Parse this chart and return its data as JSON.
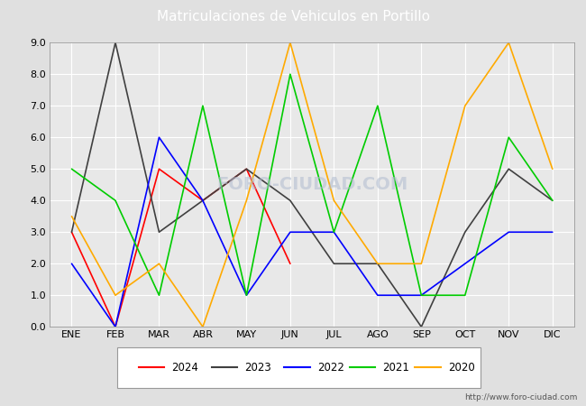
{
  "title": "Matriculaciones de Vehiculos en Portillo",
  "months": [
    "ENE",
    "FEB",
    "MAR",
    "ABR",
    "MAY",
    "JUN",
    "JUL",
    "AGO",
    "SEP",
    "OCT",
    "NOV",
    "DIC"
  ],
  "series": {
    "2024": [
      3.0,
      0.0,
      5.0,
      4.0,
      5.0,
      2.0,
      null,
      null,
      null,
      null,
      null,
      null
    ],
    "2023": [
      3.0,
      9.0,
      3.0,
      4.0,
      5.0,
      4.0,
      2.0,
      2.0,
      0.0,
      3.0,
      5.0,
      4.0
    ],
    "2022": [
      2.0,
      0.0,
      6.0,
      4.0,
      1.0,
      3.0,
      3.0,
      1.0,
      1.0,
      2.0,
      3.0,
      3.0
    ],
    "2021": [
      5.0,
      4.0,
      1.0,
      7.0,
      1.0,
      8.0,
      3.0,
      7.0,
      1.0,
      1.0,
      6.0,
      4.0
    ],
    "2020": [
      3.5,
      1.0,
      2.0,
      0.0,
      4.0,
      9.0,
      4.0,
      2.0,
      2.0,
      7.0,
      9.0,
      5.0
    ]
  },
  "colors": {
    "2024": "#ff0000",
    "2023": "#404040",
    "2022": "#0000ff",
    "2021": "#00cc00",
    "2020": "#ffaa00"
  },
  "ylim": [
    0.0,
    9.0
  ],
  "yticks": [
    0.0,
    1.0,
    2.0,
    3.0,
    4.0,
    5.0,
    6.0,
    7.0,
    8.0,
    9.0
  ],
  "fig_bg_color": "#e0e0e0",
  "plot_bg_color": "#e8e8e8",
  "header_color": "#4a6fbd",
  "grid_color": "#ffffff",
  "watermark": "FORO-CIUDAD.COM",
  "url": "http://www.foro-ciudad.com",
  "legend_years": [
    "2024",
    "2023",
    "2022",
    "2021",
    "2020"
  ]
}
